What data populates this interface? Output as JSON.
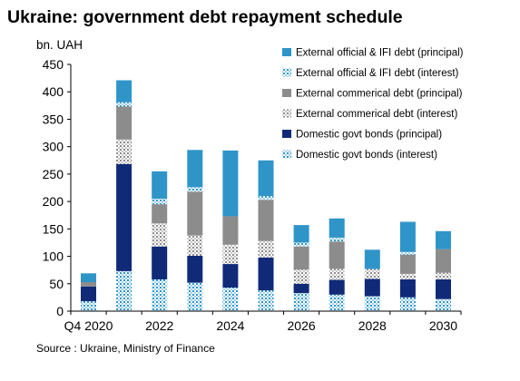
{
  "title": "Ukraine: government debt repayment schedule",
  "unit_label": "bn. UAH",
  "source": "Source : Ukraine, Ministry of Finance",
  "chart_data": {
    "type": "bar",
    "stacked": true,
    "title": "Ukraine: government debt repayment schedule",
    "ylabel": "bn. UAH",
    "xlabel": "",
    "ylim": [
      0,
      450
    ],
    "yticks": [
      0,
      50,
      100,
      150,
      200,
      250,
      300,
      350,
      400,
      450
    ],
    "grid": false,
    "legend_position": "top-right",
    "categories": [
      "Q4 2020",
      "2021",
      "2022",
      "2023",
      "2024",
      "2025",
      "2026",
      "2027",
      "2028",
      "2029",
      "2030"
    ],
    "xtick_labels": [
      "Q4 2020",
      "",
      "2022",
      "",
      "2024",
      "",
      "2026",
      "",
      "2028",
      "",
      "2030"
    ],
    "series": [
      {
        "name": "Domestic govt bonds (interest)",
        "color": "#5aa7d6",
        "pattern": "dots",
        "values": [
          18,
          73,
          58,
          52,
          43,
          38,
          33,
          30,
          27,
          25,
          22
        ]
      },
      {
        "name": "Domestic govt bonds (principal)",
        "color": "#102a78",
        "pattern": "solid",
        "values": [
          27,
          195,
          60,
          49,
          43,
          60,
          17,
          27,
          32,
          33,
          36
        ]
      },
      {
        "name": "External commerical debt (interest)",
        "color": "#b4b4b4",
        "pattern": "dots",
        "values": [
          0,
          45,
          42,
          37,
          35,
          30,
          26,
          20,
          18,
          10,
          12
        ]
      },
      {
        "name": "External commerical debt (principal)",
        "color": "#8c8c8c",
        "pattern": "solid",
        "values": [
          8,
          60,
          35,
          80,
          52,
          75,
          42,
          50,
          0,
          35,
          43
        ]
      },
      {
        "name": "External official & IFI debt (interest)",
        "color": "#5aa7d6",
        "pattern": "dots",
        "values": [
          0,
          8,
          10,
          8,
          0,
          7,
          7,
          7,
          0,
          5,
          0
        ]
      },
      {
        "name": "External official & IFI debt (principal)",
        "color": "#2f95c8",
        "pattern": "solid",
        "values": [
          16,
          40,
          50,
          68,
          120,
          65,
          32,
          35,
          35,
          55,
          33
        ]
      }
    ]
  }
}
